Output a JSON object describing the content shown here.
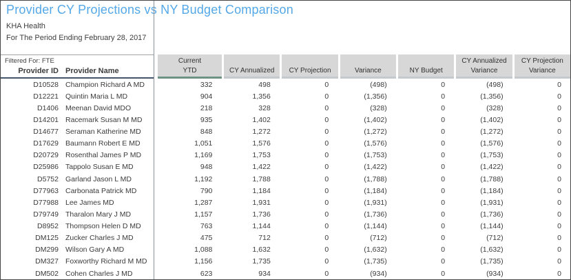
{
  "report": {
    "title": "Provider CY Projections vs NY Budget Comparison",
    "organization": "KHA Health",
    "period": "For The Period Ending February 28, 2017",
    "filter_label": "Filtered For: FTE"
  },
  "colors": {
    "title_blue": "#54a8e8",
    "header_gray": "#d7d7d7",
    "sort_accent_green": "#6d9382",
    "header_underline_dark": "#44546a"
  },
  "table": {
    "left_headers": [
      "Provider ID",
      "Provider Name"
    ],
    "numeric_headers": [
      {
        "line1": "Current",
        "line2": "YTD"
      },
      {
        "line1": "",
        "line2": "CY Annualized"
      },
      {
        "line1": "",
        "line2": "CY Projection"
      },
      {
        "line1": "",
        "line2": "Variance"
      },
      {
        "line1": "",
        "line2": "NY Budget"
      },
      {
        "line1": "CY Annualized",
        "line2": "Variance"
      },
      {
        "line1": "CY Projection",
        "line2": "Variance"
      }
    ],
    "rows": [
      {
        "id": "D10528",
        "name": "Champion Richard A MD",
        "values": [
          "332",
          "498",
          "0",
          "(498)",
          "0",
          "(498)",
          "0"
        ]
      },
      {
        "id": "D12221",
        "name": "Quintin Maria L MD",
        "values": [
          "904",
          "1,356",
          "0",
          "(1,356)",
          "0",
          "(1,356)",
          "0"
        ]
      },
      {
        "id": "D1406",
        "name": "Meenan David MDO",
        "values": [
          "218",
          "328",
          "0",
          "(328)",
          "0",
          "(328)",
          "0"
        ]
      },
      {
        "id": "D14201",
        "name": "Racemark Susan M MD",
        "values": [
          "935",
          "1,402",
          "0",
          "(1,402)",
          "0",
          "(1,402)",
          "0"
        ]
      },
      {
        "id": "D14677",
        "name": "Seraman Katherine MD",
        "values": [
          "848",
          "1,272",
          "0",
          "(1,272)",
          "0",
          "(1,272)",
          "0"
        ]
      },
      {
        "id": "D17629",
        "name": "Baumann Robert E MD",
        "values": [
          "1,051",
          "1,576",
          "0",
          "(1,576)",
          "0",
          "(1,576)",
          "0"
        ]
      },
      {
        "id": "D20729",
        "name": "Rosenthal James P MD",
        "values": [
          "1,169",
          "1,753",
          "0",
          "(1,753)",
          "0",
          "(1,753)",
          "0"
        ]
      },
      {
        "id": "D25986",
        "name": "Tappolo Susan E MD",
        "values": [
          "948",
          "1,422",
          "0",
          "(1,422)",
          "0",
          "(1,422)",
          "0"
        ]
      },
      {
        "id": "D5752",
        "name": "Garland Jason L MD",
        "values": [
          "1,192",
          "1,788",
          "0",
          "(1,788)",
          "0",
          "(1,788)",
          "0"
        ]
      },
      {
        "id": "D77963",
        "name": "Carbonata Patrick MD",
        "values": [
          "790",
          "1,184",
          "0",
          "(1,184)",
          "0",
          "(1,184)",
          "0"
        ]
      },
      {
        "id": "D77988",
        "name": "Lee James MD",
        "values": [
          "1,287",
          "1,931",
          "0",
          "(1,931)",
          "0",
          "(1,931)",
          "0"
        ]
      },
      {
        "id": "D79749",
        "name": "Tharalon Mary J MD",
        "values": [
          "1,157",
          "1,736",
          "0",
          "(1,736)",
          "0",
          "(1,736)",
          "0"
        ]
      },
      {
        "id": "D8952",
        "name": "Thompson Helen D MD",
        "values": [
          "763",
          "1,144",
          "0",
          "(1,144)",
          "0",
          "(1,144)",
          "0"
        ]
      },
      {
        "id": "DM125",
        "name": "Zucker Charles J MD",
        "values": [
          "475",
          "712",
          "0",
          "(712)",
          "0",
          "(712)",
          "0"
        ]
      },
      {
        "id": "DM299",
        "name": "Wilson Gary A MD",
        "values": [
          "1,088",
          "1,632",
          "0",
          "(1,632)",
          "0",
          "(1,632)",
          "0"
        ]
      },
      {
        "id": "DM327",
        "name": "Foxworthy Richard M MD",
        "values": [
          "1,156",
          "1,735",
          "0",
          "(1,735)",
          "0",
          "(1,735)",
          "0"
        ]
      },
      {
        "id": "DM502",
        "name": "Cohen Charles J MD",
        "values": [
          "623",
          "934",
          "0",
          "(934)",
          "0",
          "(934)",
          "0"
        ]
      }
    ]
  }
}
